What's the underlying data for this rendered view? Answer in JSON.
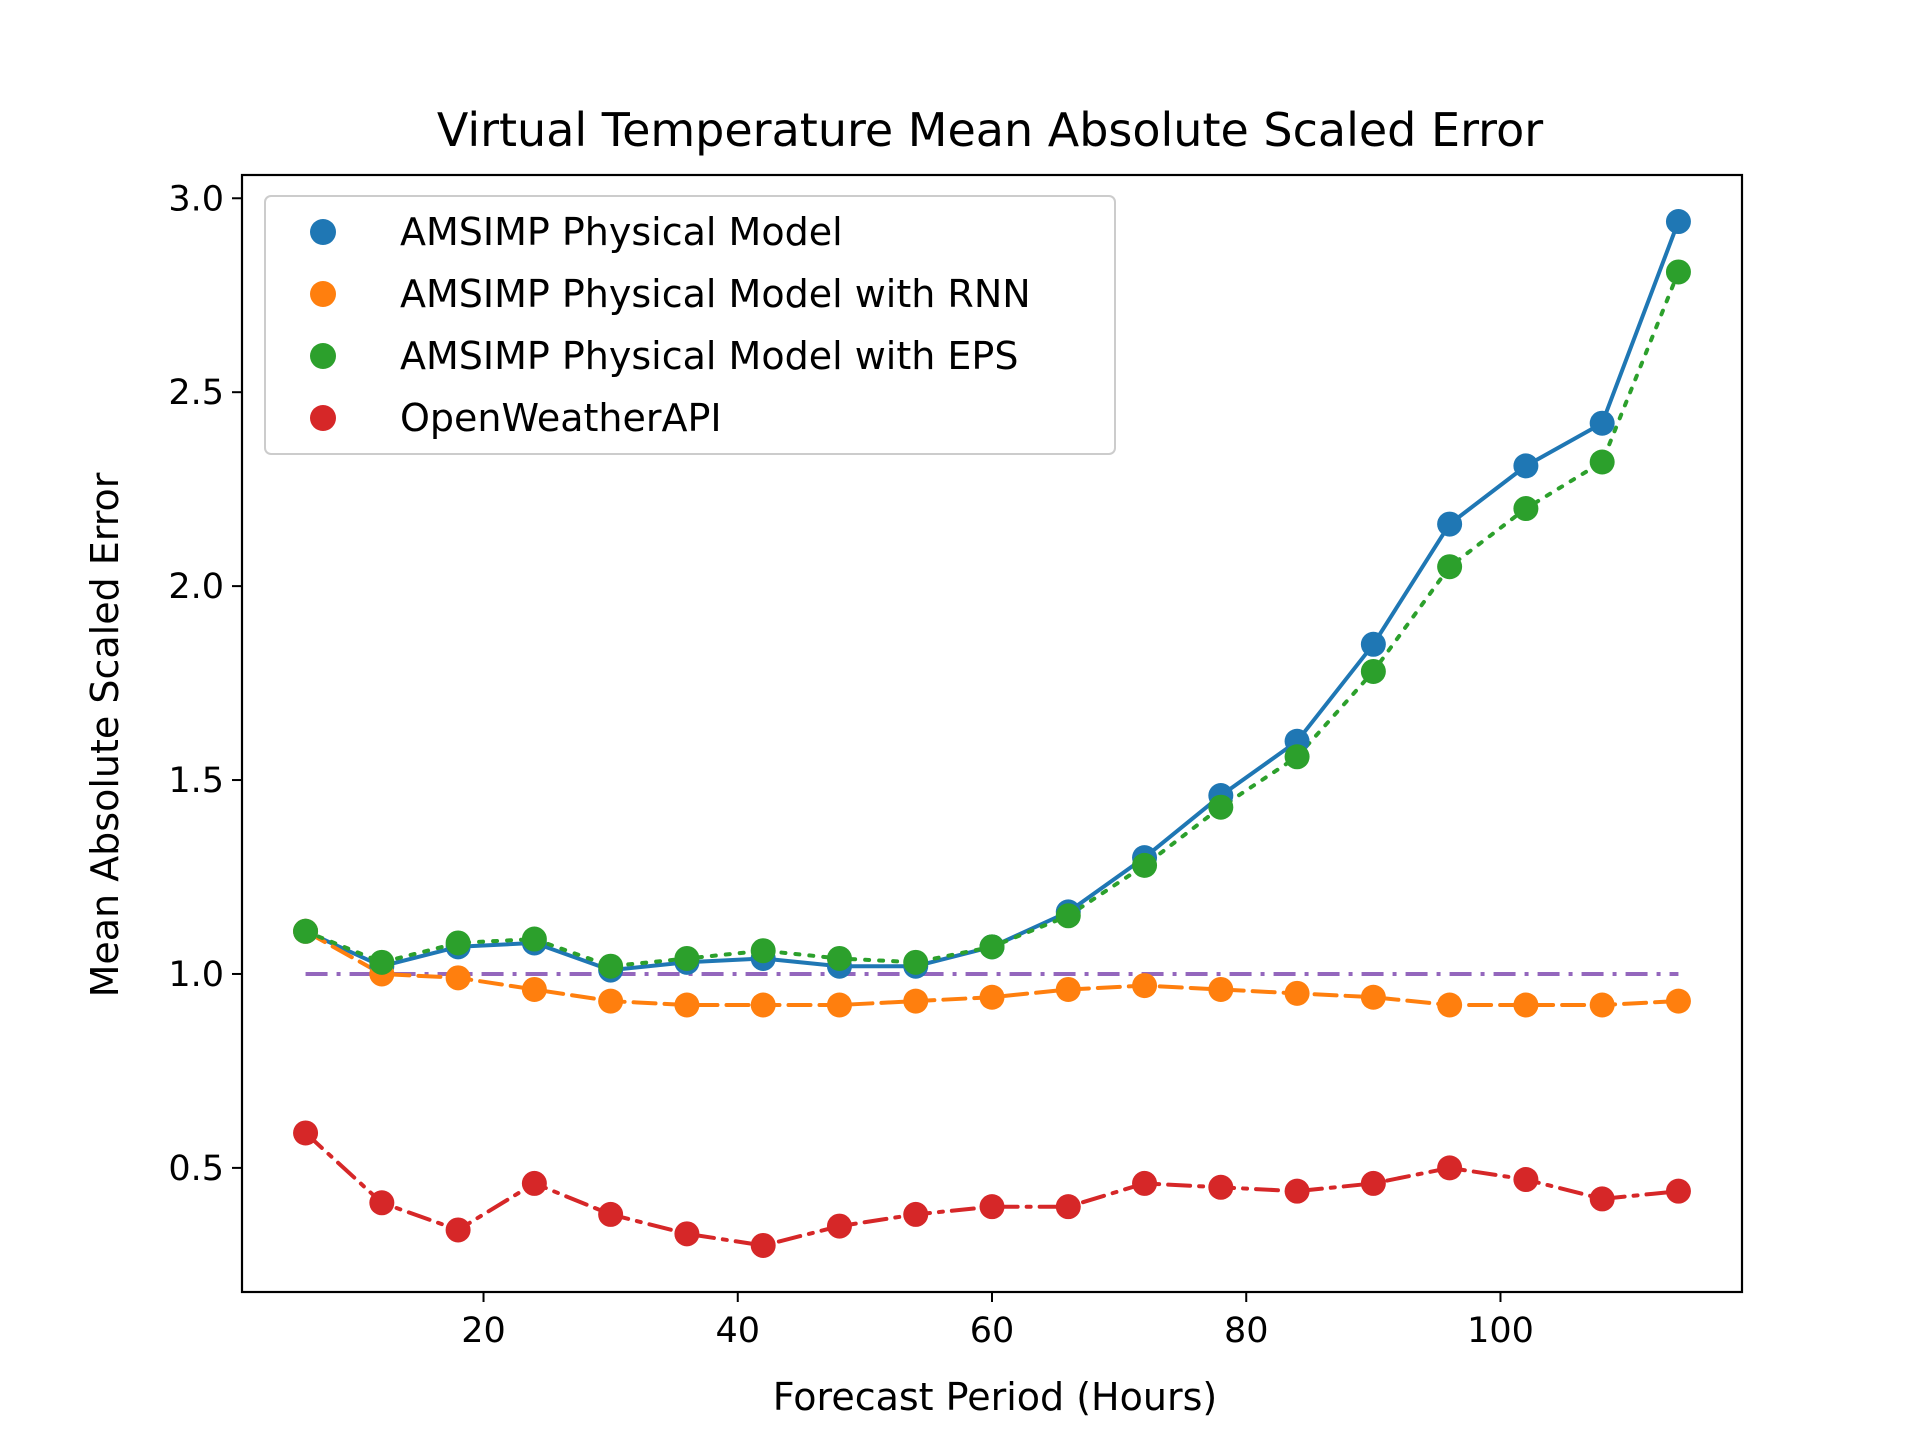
{
  "chart_data": {
    "type": "line",
    "title": "Virtual Temperature Mean Absolute Scaled Error",
    "xlabel": "Forecast Period (Hours)",
    "ylabel": "Mean Absolute Scaled Error",
    "xlim": [
      1,
      119
    ],
    "ylim": [
      0.18,
      3.06
    ],
    "x_ticks": [
      20,
      40,
      60,
      80,
      100
    ],
    "y_ticks": [
      0.5,
      1.0,
      1.5,
      2.0,
      2.5,
      3.0
    ],
    "x_tick_labels": [
      "20",
      "40",
      "60",
      "80",
      "100"
    ],
    "y_tick_labels": [
      "0.5",
      "1.0",
      "1.5",
      "2.0",
      "2.5",
      "3.0"
    ],
    "grid": false,
    "legend_position": "upper-left",
    "x": [
      6,
      12,
      18,
      24,
      30,
      36,
      42,
      48,
      54,
      60,
      66,
      72,
      78,
      84,
      90,
      96,
      102,
      108,
      114
    ],
    "series": [
      {
        "name": "AMSIMP Physical Model",
        "color": "#1f77b4",
        "line_style": "solid",
        "values": [
          1.11,
          1.02,
          1.07,
          1.08,
          1.01,
          1.03,
          1.04,
          1.02,
          1.02,
          1.07,
          1.16,
          1.3,
          1.46,
          1.6,
          1.85,
          2.16,
          2.31,
          2.42,
          2.94
        ]
      },
      {
        "name": "AMSIMP Physical Model with RNN",
        "color": "#ff7f0e",
        "line_style": "dashed",
        "values": [
          1.11,
          1.0,
          0.99,
          0.96,
          0.93,
          0.92,
          0.92,
          0.92,
          0.93,
          0.94,
          0.96,
          0.97,
          0.96,
          0.95,
          0.94,
          0.92,
          0.92,
          0.92,
          0.93
        ]
      },
      {
        "name": "AMSIMP Physical Model with EPS",
        "color": "#2ca02c",
        "line_style": "dotted",
        "values": [
          1.11,
          1.03,
          1.08,
          1.09,
          1.02,
          1.04,
          1.06,
          1.04,
          1.03,
          1.07,
          1.15,
          1.28,
          1.43,
          1.56,
          1.78,
          2.05,
          2.2,
          2.32,
          2.81
        ]
      },
      {
        "name": "OpenWeatherAPI",
        "color": "#d62728",
        "line_style": "dashdot",
        "values": [
          0.59,
          0.41,
          0.34,
          0.46,
          0.38,
          0.33,
          0.3,
          0.35,
          0.38,
          0.4,
          0.4,
          0.46,
          0.45,
          0.44,
          0.46,
          0.5,
          0.47,
          0.42,
          0.44
        ]
      }
    ],
    "reference_line": {
      "y": 1.0,
      "x_range": [
        6,
        114
      ],
      "color": "#9467bd",
      "line_style": "dashdot"
    }
  }
}
